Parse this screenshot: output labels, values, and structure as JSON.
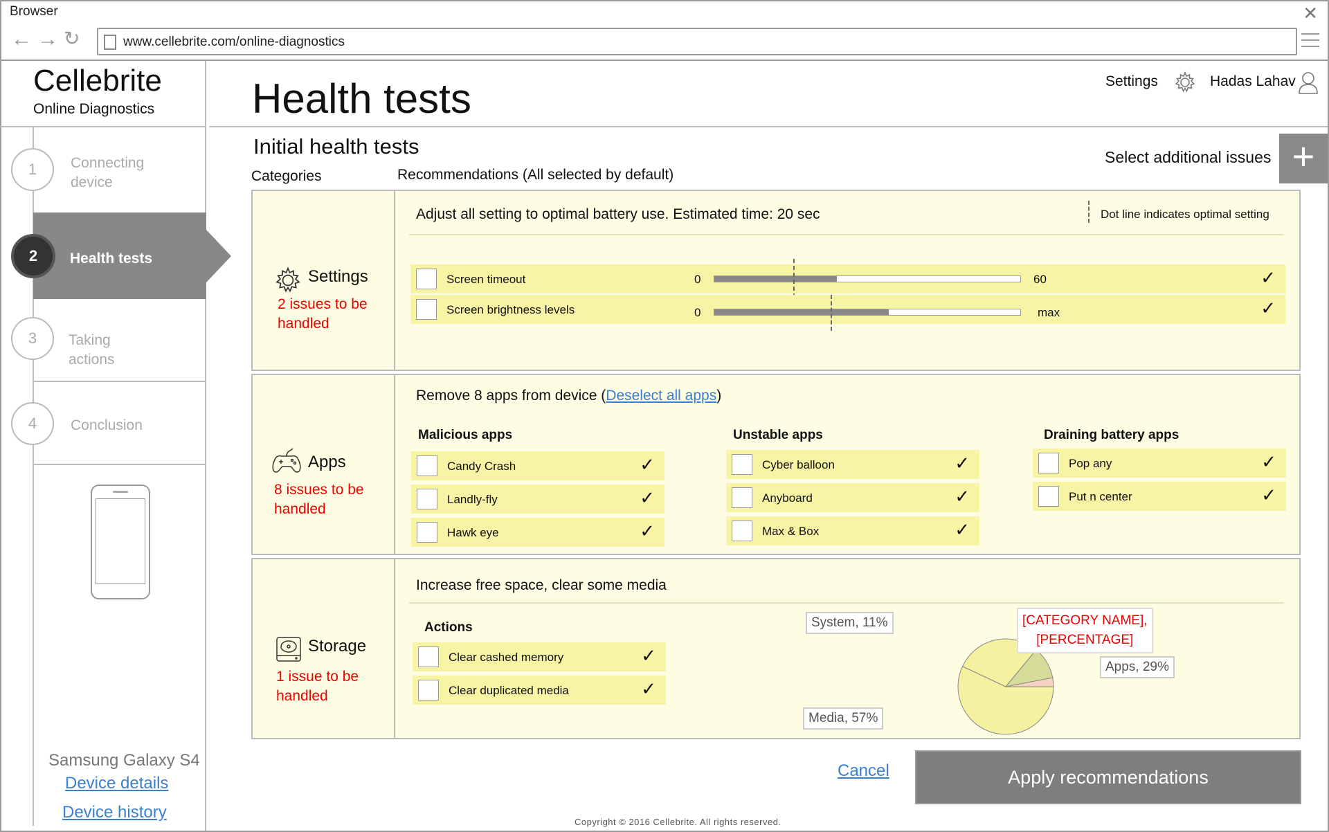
{
  "browser": {
    "title": "Browser",
    "url": "www.cellebrite.com/online-diagnostics"
  },
  "brand": {
    "name": "Cellebrite",
    "subtitle": "Online Diagnostics"
  },
  "steps": [
    {
      "number": "1",
      "label_line1": "Connecting",
      "label_line2": "device",
      "state": "done"
    },
    {
      "number": "2",
      "label": "Health tests",
      "state": "active"
    },
    {
      "number": "3",
      "label": "Taking actions",
      "state": "pending"
    },
    {
      "number": "4",
      "label": "Conclusion",
      "state": "pending"
    }
  ],
  "device": {
    "name": "Samsung Galaxy S4",
    "details_link": "Device details",
    "history_link": "Device history"
  },
  "header": {
    "title": "Health tests",
    "settings_label": "Settings",
    "user_name": "Hadas Lahav"
  },
  "section": {
    "title": "Initial health tests",
    "add_issues_label": "Select additional issues",
    "add_button": "+",
    "col_categories": "Categories",
    "col_recommendations": "Recommendations (All selected by default)"
  },
  "settings_panel": {
    "category": "Settings",
    "issues_line1": "2 issues to be",
    "issues_line2": "handled",
    "recommendation": "Adjust all setting to optimal battery use. Estimated time: 20 sec",
    "legend": "Dot line indicates optimal setting",
    "rows": [
      {
        "label": "Screen timeout",
        "min": "0",
        "max": "60",
        "value": 0.4,
        "optimal": 0.26
      },
      {
        "label": "Screen brightness levels",
        "min": "0",
        "max": "max",
        "value": 0.57,
        "optimal": 0.38
      }
    ]
  },
  "apps_panel": {
    "category": "Apps",
    "issues_line1": "8 issues to be",
    "issues_line2": "handled",
    "recommendation_prefix": "Remove 8 apps from device (",
    "deselect_link": "Deselect all apps",
    "recommendation_suffix": ")",
    "groups": [
      {
        "title": "Malicious apps",
        "apps": [
          "Candy Crash",
          "Landly-fly",
          "Hawk eye"
        ]
      },
      {
        "title": "Unstable apps",
        "apps": [
          "Cyber balloon",
          "Anyboard",
          "Max & Box"
        ]
      },
      {
        "title": "Draining battery apps",
        "apps": [
          "Pop any",
          "Put n center"
        ]
      }
    ]
  },
  "storage_panel": {
    "category": "Storage",
    "issues_line1": "1 issue to be",
    "issues_line2": "handled",
    "recommendation": "Increase free space, clear some media",
    "actions_title": "Actions",
    "actions": [
      "Clear cashed memory",
      "Clear duplicated media"
    ],
    "pie_labels": {
      "system": "System, 11%",
      "apps": "Apps, 29%",
      "media": "Media, 57%",
      "placeholder_line1": "[CATEGORY NAME],",
      "placeholder_line2": "[PERCENTAGE]"
    }
  },
  "chart_data": {
    "type": "pie",
    "categories": [
      "Media",
      "Apps",
      "System",
      "[CATEGORY NAME]"
    ],
    "values": [
      57,
      29,
      11,
      3
    ],
    "colors": [
      "#f4f1a0",
      "#f4f1a0",
      "#d6dc9a",
      "#f6d2c0"
    ]
  },
  "actions": {
    "cancel": "Cancel",
    "apply": "Apply recommendations"
  },
  "footer": "Copyright © 2016 Cellebrite. All rights reserved.",
  "colors": {
    "panel_bg": "#fefde3",
    "row_bg": "#f8f4a6",
    "issue_red": "#e00000",
    "link_blue": "#3a7fd0",
    "active_step": "#888888"
  }
}
